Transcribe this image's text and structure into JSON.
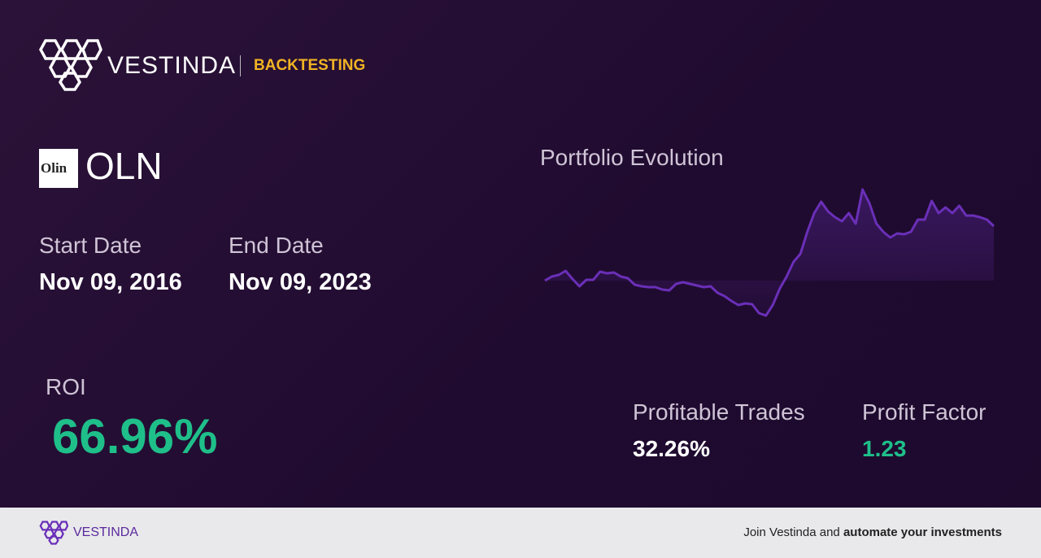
{
  "header": {
    "brand": "VESTINDA",
    "section": "BACKTESTING"
  },
  "ticker": {
    "logo_text": "Olin",
    "symbol": "OLN"
  },
  "start_date": {
    "label": "Start Date",
    "value": "Nov 09, 2016"
  },
  "end_date": {
    "label": "End Date",
    "value": "Nov 09, 2023"
  },
  "roi": {
    "label": "ROI",
    "value": "66.96%"
  },
  "chart_data": {
    "type": "line",
    "title": "Portfolio Evolution",
    "color": "#6a2fb8",
    "values": [
      100,
      105,
      107,
      112,
      102,
      93,
      101,
      101,
      111,
      109,
      110,
      105,
      103,
      95,
      93,
      92,
      92,
      89,
      88,
      96,
      98,
      96,
      94,
      92,
      93,
      85,
      81,
      75,
      70,
      72,
      71,
      60,
      57,
      70,
      90,
      105,
      123,
      133,
      160,
      183,
      197,
      185,
      178,
      173,
      183,
      170,
      212,
      195,
      170,
      160,
      153,
      158,
      157,
      160,
      175,
      175,
      198,
      183,
      190,
      183,
      192,
      180,
      180,
      178,
      175,
      167
    ]
  },
  "profitable_trades": {
    "label": "Profitable Trades",
    "value": "32.26%"
  },
  "profit_factor": {
    "label": "Profit Factor",
    "value": "1.23"
  },
  "footer": {
    "brand": "VESTINDA",
    "cta_prefix": "Join Vestinda and",
    "cta_bold": "automate your investments"
  }
}
